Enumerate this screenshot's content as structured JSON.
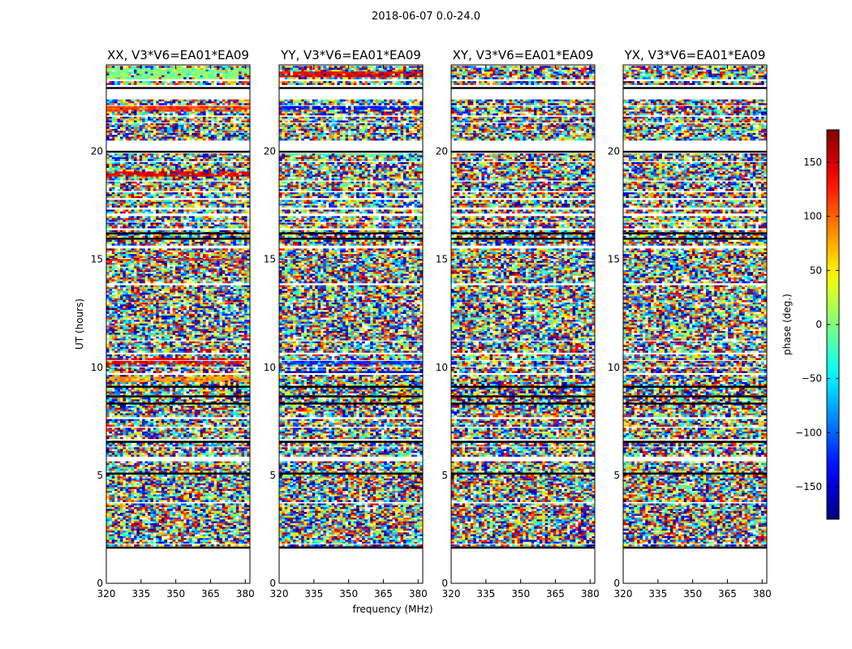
{
  "figure": {
    "suptitle": "2018-06-07 0.0-24.0"
  },
  "chart_data": [
    {
      "type": "heatmap",
      "title": "XX, V3*V6=EA01*EA09",
      "xlabel": "",
      "ylabel": "UT (hours)",
      "xlim": [
        320,
        382
      ],
      "ylim": [
        0,
        24
      ],
      "xticks": [
        320,
        335,
        350,
        365,
        380
      ],
      "yticks": [
        0,
        5,
        10,
        15,
        20
      ],
      "variant": "xx"
    },
    {
      "type": "heatmap",
      "title": "YY, V3*V6=EA01*EA09",
      "xlabel": "frequency (MHz)",
      "ylabel": "",
      "xlim": [
        320,
        382
      ],
      "ylim": [
        0,
        24
      ],
      "xticks": [
        320,
        335,
        350,
        365,
        380
      ],
      "yticks": [
        0,
        5,
        10,
        15,
        20
      ],
      "variant": "yy"
    },
    {
      "type": "heatmap",
      "title": "XY, V3*V6=EA01*EA09",
      "xlabel": "",
      "ylabel": "",
      "xlim": [
        320,
        382
      ],
      "ylim": [
        0,
        24
      ],
      "xticks": [
        320,
        335,
        350,
        365,
        380
      ],
      "yticks": [
        0,
        5,
        10,
        15,
        20
      ],
      "variant": "xy"
    },
    {
      "type": "heatmap",
      "title": "YX, V3*V6=EA01*EA09",
      "xlabel": "",
      "ylabel": "",
      "xlim": [
        320,
        382
      ],
      "ylim": [
        0,
        24
      ],
      "xticks": [
        320,
        335,
        350,
        365,
        380
      ],
      "yticks": [
        0,
        5,
        10,
        15,
        20
      ],
      "variant": "yx"
    }
  ],
  "colorbar": {
    "label": "phase (deg.)",
    "range": [
      -180,
      180
    ],
    "ticks": [
      -150,
      -100,
      -50,
      0,
      50,
      100,
      150
    ],
    "tick_labels": [
      "−150",
      "−100",
      "−50",
      "0",
      "50",
      "100",
      "150"
    ],
    "colormap": "jet"
  }
}
